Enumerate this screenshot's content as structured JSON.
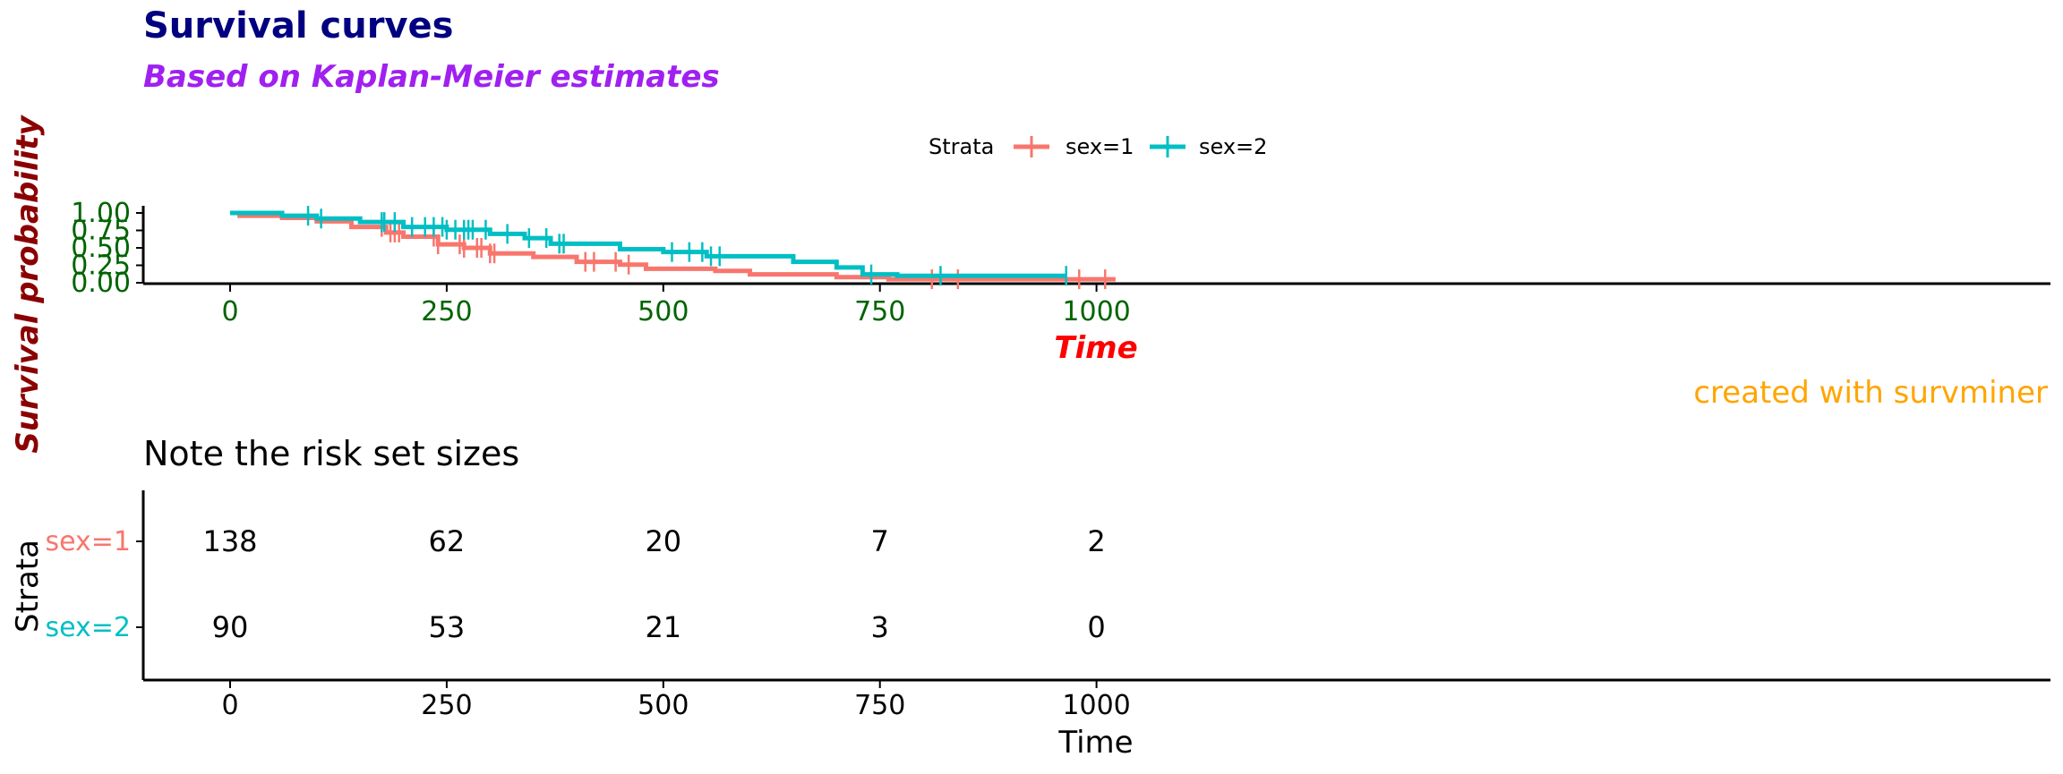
{
  "chart_data": [
    {
      "type": "line",
      "subtype": "kaplan-meier-step",
      "title": "Survival curves",
      "subtitle": "Based on Kaplan-Meier estimates",
      "xlabel": "Time",
      "ylabel": "Survival probability",
      "caption": "created with survminer",
      "legend_title": "Strata",
      "legend_position": "top",
      "xlim": [
        0,
        1022
      ],
      "ylim": [
        0,
        1
      ],
      "x_ticks": [
        "0",
        "250",
        "500",
        "750",
        "1000"
      ],
      "y_ticks": [
        "0.00",
        "0.25",
        "0.50",
        "0.75",
        "1.00"
      ],
      "grid": false,
      "series": [
        {
          "name": "sex=1",
          "color": "#F8766D",
          "x": [
            0,
            11,
            60,
            100,
            140,
            180,
            200,
            240,
            270,
            300,
            350,
            400,
            450,
            480,
            560,
            600,
            700,
            760,
            1022
          ],
          "y": [
            1.0,
            0.96,
            0.93,
            0.88,
            0.8,
            0.72,
            0.66,
            0.55,
            0.5,
            0.42,
            0.37,
            0.3,
            0.26,
            0.2,
            0.17,
            0.12,
            0.08,
            0.05,
            0.05
          ],
          "censor_x": [
            175,
            185,
            190,
            195,
            235,
            240,
            265,
            270,
            285,
            290,
            300,
            305,
            410,
            420,
            445,
            460,
            810,
            840,
            980,
            1010
          ]
        },
        {
          "name": "sex=2",
          "color": "#00BFC4",
          "x": [
            0,
            60,
            100,
            150,
            200,
            250,
            300,
            340,
            370,
            450,
            500,
            550,
            650,
            700,
            730,
            770,
            965
          ],
          "y": [
            1.0,
            0.96,
            0.92,
            0.87,
            0.8,
            0.76,
            0.7,
            0.64,
            0.56,
            0.48,
            0.44,
            0.38,
            0.3,
            0.22,
            0.12,
            0.1,
            0.1
          ],
          "censor_x": [
            90,
            105,
            175,
            178,
            190,
            210,
            225,
            235,
            245,
            250,
            260,
            270,
            275,
            280,
            295,
            320,
            345,
            365,
            380,
            385,
            510,
            530,
            545,
            555,
            565,
            740,
            820,
            965
          ]
        }
      ]
    },
    {
      "type": "table",
      "title": "Note the risk set sizes",
      "xlabel": "Time",
      "ylabel": "Strata",
      "xlim": [
        0,
        1022
      ],
      "x_ticks": [
        "0",
        "250",
        "500",
        "750",
        "1000"
      ],
      "times": [
        0,
        250,
        500,
        750,
        1000
      ],
      "rows": [
        {
          "name": "sex=1",
          "color": "#F8766D",
          "values": [
            "138",
            "62",
            "20",
            "7",
            "2"
          ]
        },
        {
          "name": "sex=2",
          "color": "#00BFC4",
          "values": [
            "90",
            "53",
            "21",
            "3",
            "0"
          ]
        }
      ]
    }
  ]
}
